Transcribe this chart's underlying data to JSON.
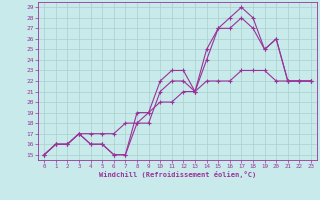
{
  "xlabel": "Windchill (Refroidissement éolien,°C)",
  "bg_color": "#c8eaea",
  "grid_color": "#a8d0d0",
  "line_color": "#993399",
  "xlim": [
    -0.5,
    23.5
  ],
  "ylim": [
    14.5,
    29.5
  ],
  "xticks": [
    0,
    1,
    2,
    3,
    4,
    5,
    6,
    7,
    8,
    9,
    10,
    11,
    12,
    13,
    14,
    15,
    16,
    17,
    18,
    19,
    20,
    21,
    22,
    23
  ],
  "yticks": [
    15,
    16,
    17,
    18,
    19,
    20,
    21,
    22,
    23,
    24,
    25,
    26,
    27,
    28,
    29
  ],
  "curve1_x": [
    0,
    1,
    2,
    3,
    4,
    5,
    6,
    7,
    8,
    9,
    10,
    11,
    12,
    13,
    14,
    15,
    16,
    17,
    18,
    19,
    20,
    21,
    22,
    23
  ],
  "curve1_y": [
    15,
    16,
    16,
    17,
    16,
    16,
    15,
    15,
    19,
    19,
    22,
    23,
    23,
    21,
    25,
    27,
    28,
    29,
    28,
    25,
    26,
    22,
    22,
    22
  ],
  "curve2_x": [
    0,
    1,
    2,
    3,
    4,
    5,
    6,
    7,
    8,
    9,
    10,
    11,
    12,
    13,
    14,
    15,
    16,
    17,
    18,
    19,
    20,
    21,
    22,
    23
  ],
  "curve2_y": [
    15,
    16,
    16,
    17,
    16,
    16,
    15,
    15,
    18,
    18,
    21,
    22,
    22,
    21,
    24,
    27,
    27,
    28,
    27,
    25,
    26,
    22,
    22,
    22
  ],
  "curve3_x": [
    0,
    1,
    2,
    3,
    4,
    5,
    6,
    7,
    8,
    9,
    10,
    11,
    12,
    13,
    14,
    15,
    16,
    17,
    18,
    19,
    20,
    21,
    22,
    23
  ],
  "curve3_y": [
    15,
    16,
    16,
    17,
    17,
    17,
    17,
    18,
    18,
    19,
    20,
    20,
    21,
    21,
    22,
    22,
    22,
    23,
    23,
    23,
    22,
    22,
    22,
    22
  ]
}
